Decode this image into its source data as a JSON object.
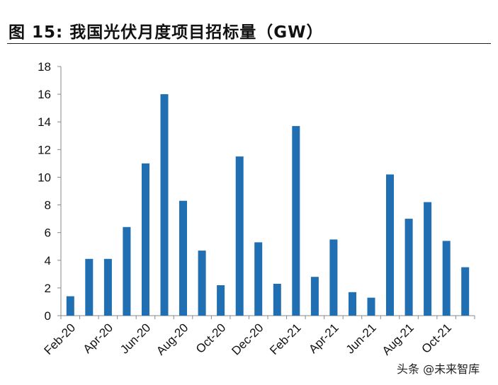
{
  "title": "图  15:  我国光伏月度项目招标量（GW）",
  "watermark": "头条 @未来智库",
  "chart_data": {
    "type": "bar",
    "color": "#1f6fb2",
    "categories": [
      "Feb-20",
      "Mar-20",
      "Apr-20",
      "May-20",
      "Jun-20",
      "Jul-20",
      "Aug-20",
      "Sep-20",
      "Oct-20",
      "Nov-20",
      "Dec-20",
      "Jan-21",
      "Feb-21",
      "Mar-21",
      "Apr-21",
      "May-21",
      "Jun-21",
      "Jul-21",
      "Aug-21",
      "Sep-21",
      "Oct-21",
      "Nov-21"
    ],
    "category_labels": [
      "Feb-20",
      "",
      "Apr-20",
      "",
      "Jun-20",
      "",
      "Aug-20",
      "",
      "Oct-20",
      "",
      "Dec-20",
      "",
      "Feb-21",
      "",
      "Apr-21",
      "",
      "Jun-21",
      "",
      "Aug-21",
      "",
      "Oct-21",
      ""
    ],
    "values": [
      1.4,
      4.1,
      4.1,
      6.4,
      11.0,
      16.0,
      8.3,
      4.7,
      2.2,
      11.5,
      5.3,
      2.3,
      13.7,
      2.8,
      5.5,
      1.7,
      1.3,
      10.2,
      7.0,
      8.2,
      5.4,
      3.5
    ],
    "ylim": [
      0,
      18
    ],
    "yticks": [
      0,
      2,
      4,
      6,
      8,
      10,
      12,
      14,
      16,
      18
    ],
    "xlabel": "",
    "ylabel": "",
    "grid": false,
    "legend": "none"
  }
}
